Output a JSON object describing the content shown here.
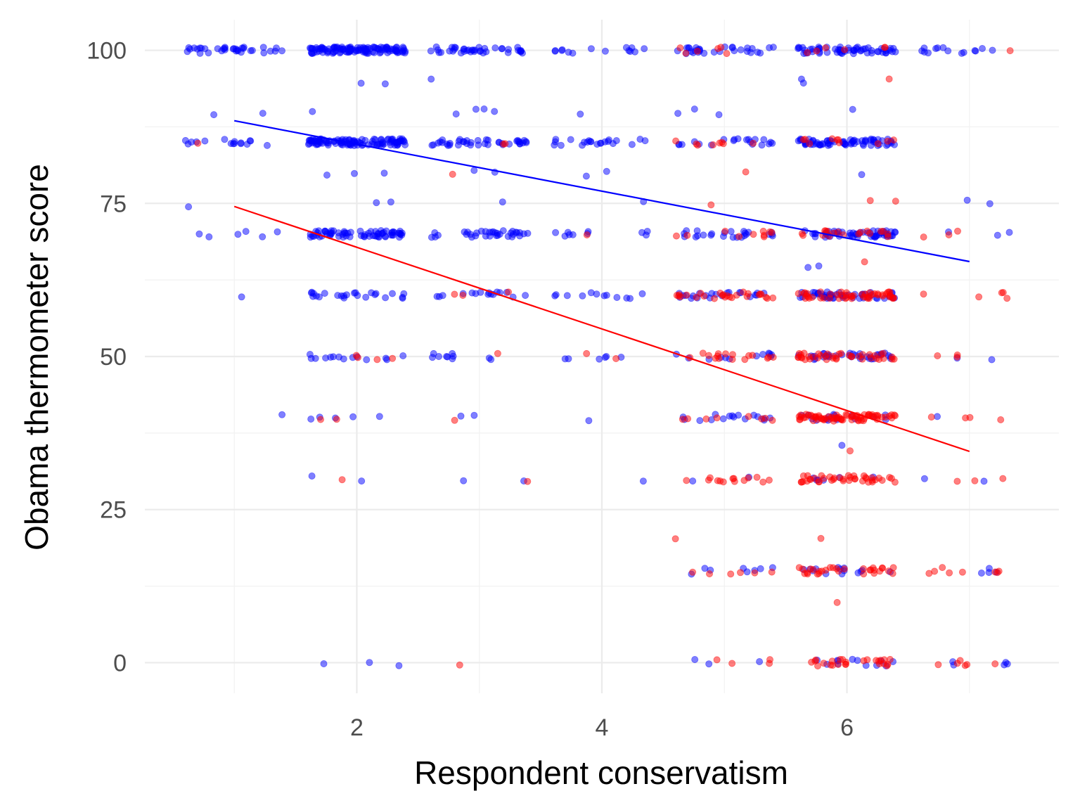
{
  "chart_data": {
    "type": "scatter",
    "title": "",
    "xlabel": "Respondent conservatism",
    "ylabel": "Obama thermometer score",
    "xlim": [
      0.27,
      7.73
    ],
    "ylim": [
      -5,
      105
    ],
    "x_ticks": [
      2,
      4,
      6
    ],
    "y_ticks": [
      0,
      25,
      50,
      75,
      100
    ],
    "grid": true,
    "legend": "none",
    "point_jitter": 0.4,
    "series": [
      {
        "color": "#0000ff",
        "opacity": 0.5,
        "groups": [
          {
            "x": 1,
            "y": 100,
            "n": 34
          },
          {
            "x": 2,
            "y": 100,
            "n": 120
          },
          {
            "x": 3,
            "y": 100,
            "n": 40
          },
          {
            "x": 4,
            "y": 100,
            "n": 14
          },
          {
            "x": 5,
            "y": 100,
            "n": 30
          },
          {
            "x": 6,
            "y": 100,
            "n": 60
          },
          {
            "x": 7,
            "y": 100,
            "n": 14
          },
          {
            "x": 2,
            "y": 95,
            "n": 2
          },
          {
            "x": 3,
            "y": 95,
            "n": 1
          },
          {
            "x": 6,
            "y": 95,
            "n": 2
          },
          {
            "x": 1,
            "y": 90,
            "n": 2
          },
          {
            "x": 2,
            "y": 90,
            "n": 1
          },
          {
            "x": 3,
            "y": 90,
            "n": 4
          },
          {
            "x": 4,
            "y": 90,
            "n": 1
          },
          {
            "x": 5,
            "y": 90,
            "n": 3
          },
          {
            "x": 6,
            "y": 90,
            "n": 1
          },
          {
            "x": 1,
            "y": 85,
            "n": 16
          },
          {
            "x": 2,
            "y": 85,
            "n": 110
          },
          {
            "x": 3,
            "y": 85,
            "n": 40
          },
          {
            "x": 4,
            "y": 85,
            "n": 22
          },
          {
            "x": 5,
            "y": 85,
            "n": 20
          },
          {
            "x": 6,
            "y": 85,
            "n": 70
          },
          {
            "x": 2,
            "y": 80,
            "n": 3
          },
          {
            "x": 3,
            "y": 80,
            "n": 2
          },
          {
            "x": 4,
            "y": 80,
            "n": 2
          },
          {
            "x": 6,
            "y": 80,
            "n": 1
          },
          {
            "x": 1,
            "y": 75,
            "n": 1
          },
          {
            "x": 2,
            "y": 75,
            "n": 2
          },
          {
            "x": 3,
            "y": 75,
            "n": 1
          },
          {
            "x": 4,
            "y": 75,
            "n": 1
          },
          {
            "x": 7,
            "y": 75,
            "n": 2
          },
          {
            "x": 1,
            "y": 70,
            "n": 6
          },
          {
            "x": 2,
            "y": 70,
            "n": 70
          },
          {
            "x": 3,
            "y": 70,
            "n": 35
          },
          {
            "x": 4,
            "y": 70,
            "n": 10
          },
          {
            "x": 5,
            "y": 70,
            "n": 24
          },
          {
            "x": 6,
            "y": 70,
            "n": 55
          },
          {
            "x": 7,
            "y": 70,
            "n": 3
          },
          {
            "x": 6,
            "y": 65,
            "n": 2
          },
          {
            "x": 1,
            "y": 60,
            "n": 1
          },
          {
            "x": 2,
            "y": 60,
            "n": 24
          },
          {
            "x": 3,
            "y": 60,
            "n": 16
          },
          {
            "x": 4,
            "y": 60,
            "n": 12
          },
          {
            "x": 5,
            "y": 60,
            "n": 22
          },
          {
            "x": 6,
            "y": 60,
            "n": 50
          },
          {
            "x": 2,
            "y": 50,
            "n": 14
          },
          {
            "x": 3,
            "y": 50,
            "n": 10
          },
          {
            "x": 4,
            "y": 50,
            "n": 6
          },
          {
            "x": 5,
            "y": 50,
            "n": 12
          },
          {
            "x": 6,
            "y": 50,
            "n": 36
          },
          {
            "x": 7,
            "y": 50,
            "n": 2
          },
          {
            "x": 1,
            "y": 40,
            "n": 1
          },
          {
            "x": 2,
            "y": 40,
            "n": 5
          },
          {
            "x": 3,
            "y": 40,
            "n": 2
          },
          {
            "x": 4,
            "y": 40,
            "n": 1
          },
          {
            "x": 5,
            "y": 40,
            "n": 16
          },
          {
            "x": 6,
            "y": 40,
            "n": 16
          },
          {
            "x": 7,
            "y": 40,
            "n": 1
          },
          {
            "x": 6,
            "y": 35,
            "n": 1
          },
          {
            "x": 2,
            "y": 30,
            "n": 2
          },
          {
            "x": 3,
            "y": 30,
            "n": 2
          },
          {
            "x": 4,
            "y": 30,
            "n": 1
          },
          {
            "x": 5,
            "y": 30,
            "n": 2
          },
          {
            "x": 6,
            "y": 30,
            "n": 6
          },
          {
            "x": 7,
            "y": 30,
            "n": 2
          },
          {
            "x": 5,
            "y": 15,
            "n": 8
          },
          {
            "x": 6,
            "y": 15,
            "n": 14
          },
          {
            "x": 7,
            "y": 15,
            "n": 4
          },
          {
            "x": 2,
            "y": 0,
            "n": 3
          },
          {
            "x": 5,
            "y": 0,
            "n": 3
          },
          {
            "x": 6,
            "y": 0,
            "n": 12
          },
          {
            "x": 7,
            "y": 0,
            "n": 5
          }
        ],
        "fit": {
          "x": [
            1,
            7
          ],
          "y": [
            88.5,
            65.5
          ]
        }
      },
      {
        "color": "#ff0000",
        "opacity": 0.5,
        "groups": [
          {
            "x": 5,
            "y": 100,
            "n": 6
          },
          {
            "x": 6,
            "y": 100,
            "n": 6
          },
          {
            "x": 7,
            "y": 100,
            "n": 1
          },
          {
            "x": 6,
            "y": 95,
            "n": 1
          },
          {
            "x": 1,
            "y": 85,
            "n": 1
          },
          {
            "x": 3,
            "y": 85,
            "n": 2
          },
          {
            "x": 5,
            "y": 85,
            "n": 8
          },
          {
            "x": 6,
            "y": 85,
            "n": 10
          },
          {
            "x": 3,
            "y": 80,
            "n": 1
          },
          {
            "x": 5,
            "y": 80,
            "n": 1
          },
          {
            "x": 5,
            "y": 75,
            "n": 1
          },
          {
            "x": 6,
            "y": 75,
            "n": 2
          },
          {
            "x": 4,
            "y": 70,
            "n": 1
          },
          {
            "x": 5,
            "y": 70,
            "n": 10
          },
          {
            "x": 6,
            "y": 70,
            "n": 18
          },
          {
            "x": 7,
            "y": 70,
            "n": 3
          },
          {
            "x": 6,
            "y": 65,
            "n": 1
          },
          {
            "x": 3,
            "y": 60,
            "n": 3
          },
          {
            "x": 5,
            "y": 60,
            "n": 26
          },
          {
            "x": 6,
            "y": 60,
            "n": 50
          },
          {
            "x": 7,
            "y": 60,
            "n": 5
          },
          {
            "x": 2,
            "y": 50,
            "n": 4
          },
          {
            "x": 3,
            "y": 50,
            "n": 1
          },
          {
            "x": 4,
            "y": 50,
            "n": 2
          },
          {
            "x": 5,
            "y": 50,
            "n": 16
          },
          {
            "x": 6,
            "y": 50,
            "n": 40
          },
          {
            "x": 7,
            "y": 50,
            "n": 3
          },
          {
            "x": 2,
            "y": 40,
            "n": 2
          },
          {
            "x": 3,
            "y": 40,
            "n": 1
          },
          {
            "x": 5,
            "y": 40,
            "n": 8
          },
          {
            "x": 6,
            "y": 40,
            "n": 70
          },
          {
            "x": 7,
            "y": 40,
            "n": 4
          },
          {
            "x": 6,
            "y": 35,
            "n": 1
          },
          {
            "x": 2,
            "y": 30,
            "n": 1
          },
          {
            "x": 3,
            "y": 30,
            "n": 1
          },
          {
            "x": 5,
            "y": 30,
            "n": 14
          },
          {
            "x": 6,
            "y": 30,
            "n": 40
          },
          {
            "x": 7,
            "y": 30,
            "n": 3
          },
          {
            "x": 5,
            "y": 20,
            "n": 1
          },
          {
            "x": 6,
            "y": 20,
            "n": 1
          },
          {
            "x": 5,
            "y": 15,
            "n": 6
          },
          {
            "x": 6,
            "y": 15,
            "n": 30
          },
          {
            "x": 7,
            "y": 15,
            "n": 8
          },
          {
            "x": 6,
            "y": 10,
            "n": 1
          },
          {
            "x": 3,
            "y": 0,
            "n": 1
          },
          {
            "x": 5,
            "y": 0,
            "n": 4
          },
          {
            "x": 6,
            "y": 0,
            "n": 25
          },
          {
            "x": 7,
            "y": 0,
            "n": 6
          }
        ],
        "fit": {
          "x": [
            1,
            7
          ],
          "y": [
            74.5,
            34.5
          ]
        }
      }
    ]
  }
}
